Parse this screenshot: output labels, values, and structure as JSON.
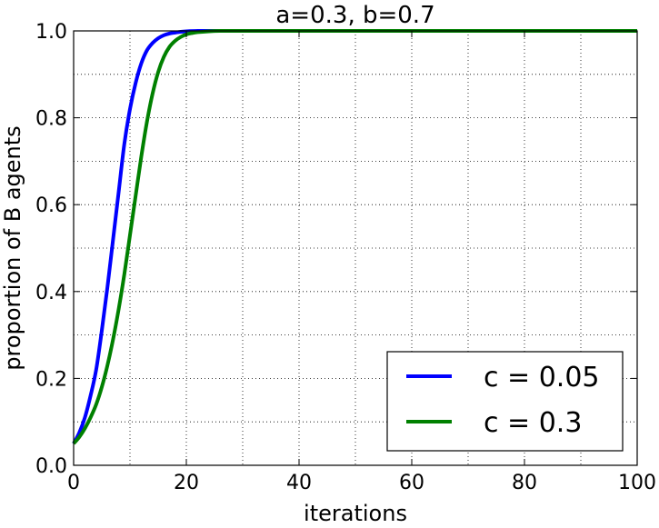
{
  "chart_data": {
    "type": "line",
    "title": "a=0.3, b=0.7",
    "xlabel": "iterations",
    "ylabel": "proportion of B agents",
    "xlim": [
      0,
      100
    ],
    "ylim": [
      0,
      1
    ],
    "xticks": [
      "0",
      "20",
      "40",
      "60",
      "80",
      "100"
    ],
    "yticks": [
      "0.0",
      "0.2",
      "0.4",
      "0.6",
      "0.8",
      "1.0"
    ],
    "grid": true,
    "legend_position": "lower-right",
    "series": [
      {
        "name": "c = 0.05",
        "color": "#0000ff",
        "x": [
          0,
          1,
          2,
          3,
          4,
          5,
          6,
          7,
          8,
          9,
          10,
          11,
          12,
          13,
          14,
          15,
          16,
          17,
          18,
          19,
          20,
          22,
          24,
          26,
          28,
          30,
          35,
          40,
          50,
          60,
          70,
          80,
          90,
          100
        ],
        "y": [
          0.05,
          0.075,
          0.11,
          0.16,
          0.22,
          0.31,
          0.41,
          0.52,
          0.63,
          0.74,
          0.82,
          0.88,
          0.925,
          0.955,
          0.972,
          0.983,
          0.99,
          0.994,
          0.996,
          0.998,
          0.999,
          1.0,
          1.0,
          1.0,
          1.0,
          1.0,
          1.0,
          1.0,
          1.0,
          1.0,
          1.0,
          1.0,
          1.0,
          1.0
        ]
      },
      {
        "name": "c = 0.3",
        "color": "#008000",
        "x": [
          0,
          1,
          2,
          3,
          4,
          5,
          6,
          7,
          8,
          9,
          10,
          11,
          12,
          13,
          14,
          15,
          16,
          17,
          18,
          19,
          20,
          21,
          22,
          24,
          26,
          28,
          30,
          35,
          40,
          50,
          60,
          70,
          80,
          90,
          100
        ],
        "y": [
          0.05,
          0.065,
          0.085,
          0.11,
          0.14,
          0.18,
          0.23,
          0.29,
          0.36,
          0.44,
          0.53,
          0.62,
          0.71,
          0.79,
          0.855,
          0.905,
          0.94,
          0.963,
          0.977,
          0.986,
          0.992,
          0.995,
          0.997,
          0.999,
          1.0,
          1.0,
          1.0,
          1.0,
          1.0,
          1.0,
          1.0,
          1.0,
          1.0,
          1.0,
          1.0
        ]
      }
    ]
  }
}
